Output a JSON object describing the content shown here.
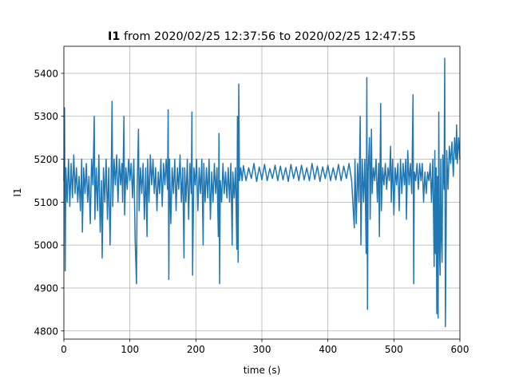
{
  "chart_data": {
    "type": "line",
    "title_parts": [
      "I1",
      "from 2020/02/25 12:37:56 to 2020/02/25 12:47:55"
    ],
    "xlabel": "time (s)",
    "ylabel": "I1",
    "xlim": [
      0,
      600
    ],
    "xticks": [
      0,
      100,
      200,
      300,
      400,
      500,
      600
    ],
    "ylim": [
      4781,
      5463
    ],
    "yticks": [
      4800,
      4900,
      5000,
      5100,
      5200,
      5300,
      5400
    ],
    "grid": true,
    "color": "#1f77b4",
    "x": [
      0,
      1,
      2,
      3,
      5,
      7,
      9,
      11,
      13,
      15,
      17,
      19,
      21,
      23,
      25,
      27,
      28,
      30,
      32,
      34,
      36,
      38,
      40,
      42,
      44,
      46,
      47,
      49,
      51,
      53,
      55,
      57,
      58,
      60,
      62,
      64,
      66,
      68,
      70,
      72,
      73,
      74,
      76,
      78,
      80,
      82,
      84,
      86,
      88,
      89,
      91,
      92,
      94,
      96,
      98,
      100,
      102,
      104,
      106,
      108,
      110,
      111,
      113,
      114,
      116,
      118,
      120,
      122,
      124,
      126,
      127,
      129,
      131,
      133,
      135,
      137,
      139,
      141,
      143,
      145,
      147,
      149,
      151,
      153,
      155,
      157,
      158,
      159,
      160,
      162,
      164,
      166,
      168,
      170,
      172,
      174,
      176,
      178,
      180,
      182,
      183,
      185,
      187,
      189,
      191,
      193,
      194,
      195,
      197,
      199,
      201,
      203,
      205,
      207,
      209,
      211,
      212,
      214,
      216,
      218,
      220,
      222,
      224,
      226,
      228,
      230,
      232,
      234,
      235,
      236,
      237,
      239,
      241,
      243,
      245,
      247,
      249,
      251,
      253,
      255,
      256,
      258,
      260,
      262,
      263,
      264,
      265,
      266,
      268,
      270,
      272,
      276,
      280,
      284,
      288,
      292,
      296,
      300,
      304,
      308,
      312,
      316,
      320,
      324,
      328,
      332,
      336,
      340,
      344,
      348,
      352,
      356,
      360,
      364,
      368,
      372,
      376,
      380,
      384,
      388,
      392,
      396,
      400,
      404,
      408,
      412,
      416,
      420,
      424,
      428,
      432,
      436,
      440,
      441,
      443,
      445,
      447,
      449,
      450,
      452,
      454,
      456,
      458,
      459,
      460,
      461,
      463,
      464,
      466,
      467,
      469,
      471,
      473,
      475,
      477,
      478,
      480,
      481,
      483,
      485,
      487,
      489,
      491,
      493,
      495,
      496,
      498,
      500,
      502,
      504,
      506,
      508,
      510,
      512,
      514,
      516,
      518,
      519,
      521,
      523,
      525,
      527,
      529,
      530,
      531,
      533,
      535,
      537,
      539,
      541,
      543,
      545,
      547,
      549,
      551,
      553,
      555,
      557,
      559,
      561,
      562,
      563,
      564,
      565,
      566,
      567,
      568,
      569,
      570,
      571,
      572,
      573,
      574,
      576,
      577,
      578,
      579,
      580,
      582,
      584,
      586,
      588,
      590,
      592,
      594,
      595,
      596,
      598,
      600
    ],
    "values": [
      5150,
      5320,
      4940,
      5180,
      5100,
      5200,
      5090,
      5190,
      5110,
      5210,
      5120,
      5180,
      5100,
      5160,
      5080,
      5200,
      5030,
      5180,
      5120,
      5190,
      5100,
      5160,
      5050,
      5200,
      5140,
      5300,
      5060,
      5180,
      5080,
      5210,
      5030,
      5150,
      4970,
      5180,
      5100,
      5200,
      5060,
      5180,
      5000,
      5200,
      5335,
      5090,
      5200,
      5140,
      5210,
      5100,
      5200,
      5140,
      5190,
      5100,
      5300,
      5070,
      5180,
      5130,
      5200,
      5150,
      5190,
      5110,
      5200,
      5010,
      4910,
      5130,
      5270,
      5080,
      5180,
      5120,
      5190,
      5060,
      5180,
      5020,
      5200,
      5100,
      5210,
      5140,
      5200,
      5120,
      5180,
      5080,
      5170,
      5120,
      5200,
      5090,
      5190,
      5140,
      5200,
      5130,
      5315,
      4920,
      5200,
      5050,
      5180,
      5120,
      5200,
      5080,
      5180,
      5130,
      5210,
      5100,
      5180,
      4970,
      5180,
      5100,
      5200,
      5060,
      5190,
      5120,
      5310,
      4930,
      5180,
      5140,
      5200,
      5080,
      5180,
      5120,
      5200,
      5000,
      5190,
      5100,
      5180,
      5110,
      5200,
      5060,
      5170,
      5100,
      5190,
      5120,
      5180,
      5020,
      5260,
      4910,
      5150,
      5100,
      5190,
      5120,
      5170,
      5110,
      5180,
      5100,
      5190,
      5000,
      5170,
      5110,
      5180,
      4990,
      5300,
      4960,
      5375,
      5150,
      5180,
      5150,
      5185,
      5150,
      5180,
      5155,
      5190,
      5148,
      5182,
      5152,
      5188,
      5150,
      5178,
      5155,
      5186,
      5150,
      5184,
      5152,
      5180,
      5148,
      5188,
      5155,
      5182,
      5150,
      5186,
      5152,
      5180,
      5150,
      5190,
      5153,
      5184,
      5148,
      5182,
      5155,
      5186,
      5150,
      5180,
      5152,
      5188,
      5150,
      5184,
      5155,
      5190,
      5150,
      5040,
      5200,
      5050,
      5190,
      5100,
      5300,
      5000,
      5200,
      5100,
      5200,
      4980,
      5390,
      4850,
      5170,
      5250,
      5060,
      5270,
      5120,
      5180,
      5150,
      5200,
      5100,
      5190,
      5020,
      5330,
      5080,
      5180,
      5140,
      5190,
      5130,
      5180,
      5150,
      5230,
      5100,
      5200,
      5070,
      5180,
      5140,
      5190,
      5080,
      5200,
      5120,
      5190,
      5140,
      5200,
      5060,
      5220,
      5140,
      5190,
      5120,
      5350,
      4910,
      5170,
      5150,
      5190,
      5130,
      5190,
      5150,
      5190,
      5100,
      5170,
      5120,
      5170,
      5150,
      5190,
      5100,
      5200,
      4950,
      5220,
      4980,
      5180,
      4840,
      5160,
      4830,
      5310,
      5000,
      4930,
      5200,
      5020,
      4960,
      5210,
      5130,
      5435,
      4810,
      5000,
      5220,
      5130,
      5230,
      5190,
      5240,
      5160,
      5250,
      5200,
      5280,
      5190,
      5250,
      5200
    ]
  }
}
